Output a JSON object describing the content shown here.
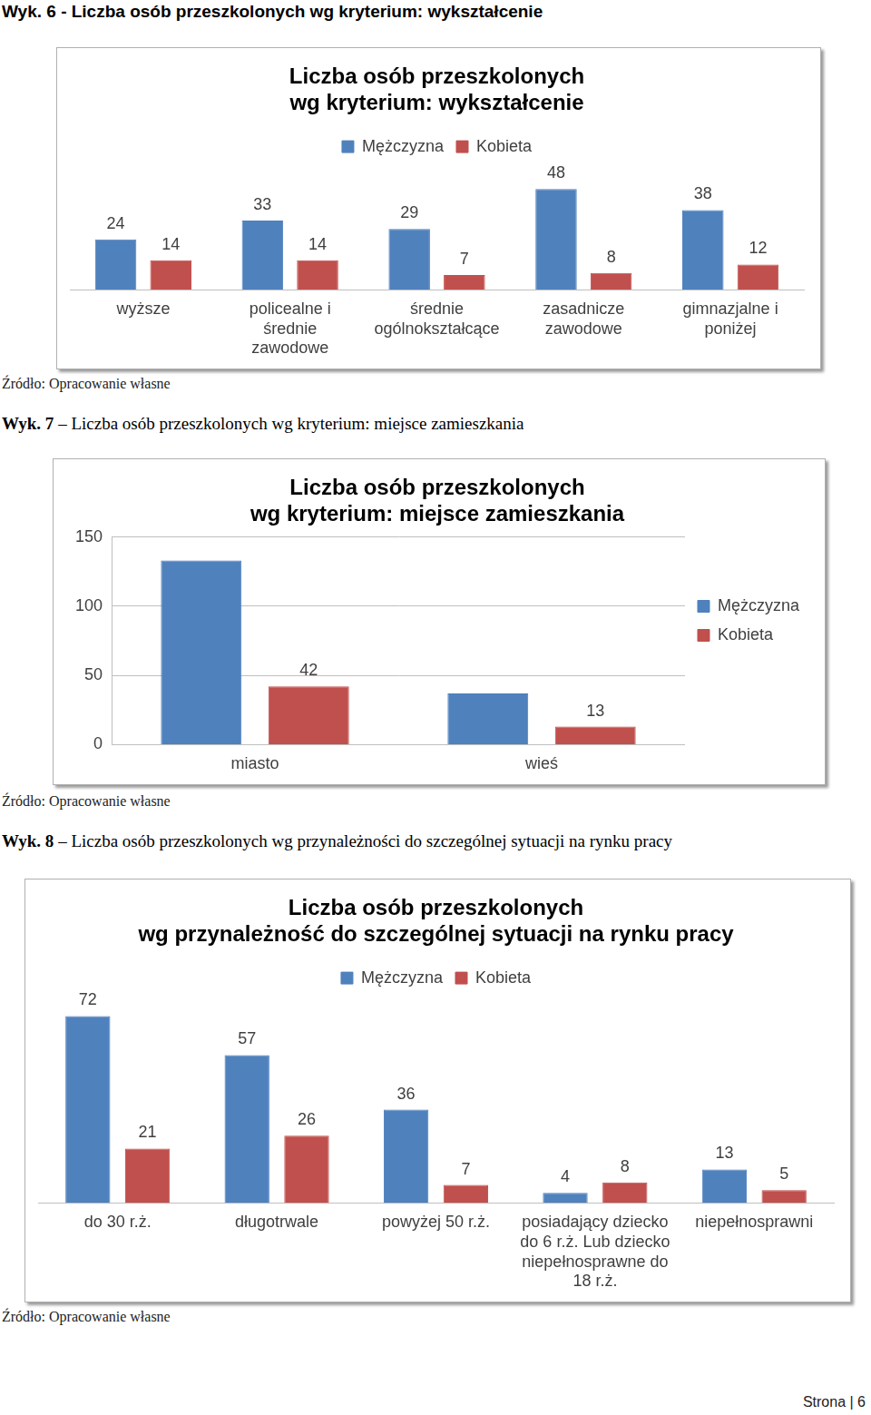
{
  "captions": [
    {
      "label": "Wyk. 6",
      "text": "- Liczba osób przeszkolonych wg kryterium: wykształcenie"
    },
    {
      "label": "Wyk. 7",
      "text": "– Liczba osób przeszkolonych wg kryterium: miejsce zamieszkania"
    },
    {
      "label": "Wyk. 8",
      "text": "– Liczba osób przeszkolonych wg przynależności do szczególnej sytuacji na rynku pracy"
    }
  ],
  "sources": [
    "Źródło: Opracowanie własne",
    "Źródło: Opracowanie własne",
    "Źródło: Opracowanie własne"
  ],
  "footer": "Strona | 6",
  "chart_data": [
    {
      "type": "bar",
      "title": [
        "Liczba osób przeszkolonych",
        "wg kryterium: wykształcenie"
      ],
      "categories": [
        [
          "wyższe"
        ],
        [
          "policealne i",
          "średnie",
          "zawodowe"
        ],
        [
          "średnie",
          "ogólnokształcące"
        ],
        [
          "zasadnicze",
          "zawodowe"
        ],
        [
          "gimnazjalne i",
          "poniżej"
        ]
      ],
      "series": [
        {
          "name": "Mężczyzna",
          "color": "#4f81bd",
          "values": [
            24,
            33,
            29,
            48,
            38
          ]
        },
        {
          "name": "Kobieta",
          "color": "#c0504d",
          "values": [
            14,
            14,
            7,
            8,
            12
          ]
        }
      ],
      "ylim": [
        0,
        60
      ],
      "grid": false,
      "legend": "top",
      "data_labels": true,
      "tick_labels": "x"
    },
    {
      "type": "bar",
      "title": [
        "Liczba osób przeszkolonych",
        "wg kryterium: miejsce zamieszkania"
      ],
      "categories": [
        "miasto",
        "wieś"
      ],
      "series": [
        {
          "name": "Mężczyzna",
          "color": "#4f81bd",
          "values": [
            133,
            37
          ],
          "data_labels": false
        },
        {
          "name": "Kobieta",
          "color": "#c0504d",
          "values": [
            42,
            13
          ],
          "data_labels": true
        }
      ],
      "ylim": [
        0,
        150
      ],
      "yticks": [
        0,
        50,
        100,
        150
      ],
      "grid": true,
      "legend": "right"
    },
    {
      "type": "bar",
      "title": [
        "Liczba osób przeszkolonych",
        "wg przynależność do szczególnej sytuacji na rynku pracy"
      ],
      "categories": [
        [
          "do 30 r.ż."
        ],
        [
          "długotrwale"
        ],
        [
          "powyżej 50 r.ż."
        ],
        [
          "posiadający dziecko",
          "do 6 r.ż. Lub dziecko",
          "niepełnosprawne do",
          "18 r.ż."
        ],
        [
          "niepełnosprawni"
        ]
      ],
      "series": [
        {
          "name": "Mężczyzna",
          "color": "#4f81bd",
          "values": [
            72,
            57,
            36,
            4,
            13
          ]
        },
        {
          "name": "Kobieta",
          "color": "#c0504d",
          "values": [
            21,
            26,
            7,
            8,
            5
          ]
        }
      ],
      "ylim": [
        0,
        80
      ],
      "grid": false,
      "legend": "top",
      "data_labels": true,
      "tick_labels": "x"
    }
  ]
}
